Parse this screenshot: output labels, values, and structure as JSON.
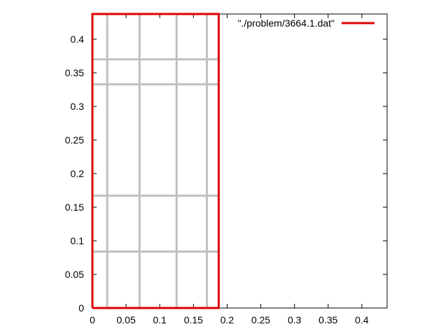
{
  "chart_data": {
    "type": "line",
    "title": "",
    "xlabel": "",
    "ylabel": "",
    "xlim": [
      0,
      0.4375
    ],
    "ylim": [
      0,
      0.4375
    ],
    "x_ticks": [
      0,
      0.05,
      0.1,
      0.15,
      0.2,
      0.25,
      0.3,
      0.35,
      0.4
    ],
    "y_ticks": [
      0,
      0.05,
      0.1,
      0.15,
      0.2,
      0.25,
      0.3,
      0.35,
      0.4
    ],
    "x_tick_labels": [
      "0",
      "0.05",
      "0.1",
      "0.15",
      "0.2",
      "0.25",
      "0.3",
      "0.35",
      "0.4"
    ],
    "y_tick_labels": [
      "0",
      "0.05",
      "0.1",
      "0.15",
      "0.2",
      "0.25",
      "0.3",
      "0.35",
      "0.4"
    ],
    "legend_position": "top-right",
    "series": [
      {
        "name": "\"./problem/3664.1.dat\"",
        "color": "#dd0000",
        "x": [
          0,
          0.1875,
          0.1875,
          0,
          0
        ],
        "y": [
          0,
          0,
          0.4375,
          0.4375,
          0
        ]
      }
    ],
    "grid_lines": {
      "color": "#c0c0c0",
      "vertical_x": [
        0.022,
        0.07,
        0.125,
        0.17
      ],
      "horizontal_y": [
        0.084,
        0.167,
        0.333,
        0.37
      ]
    },
    "grid": false
  }
}
